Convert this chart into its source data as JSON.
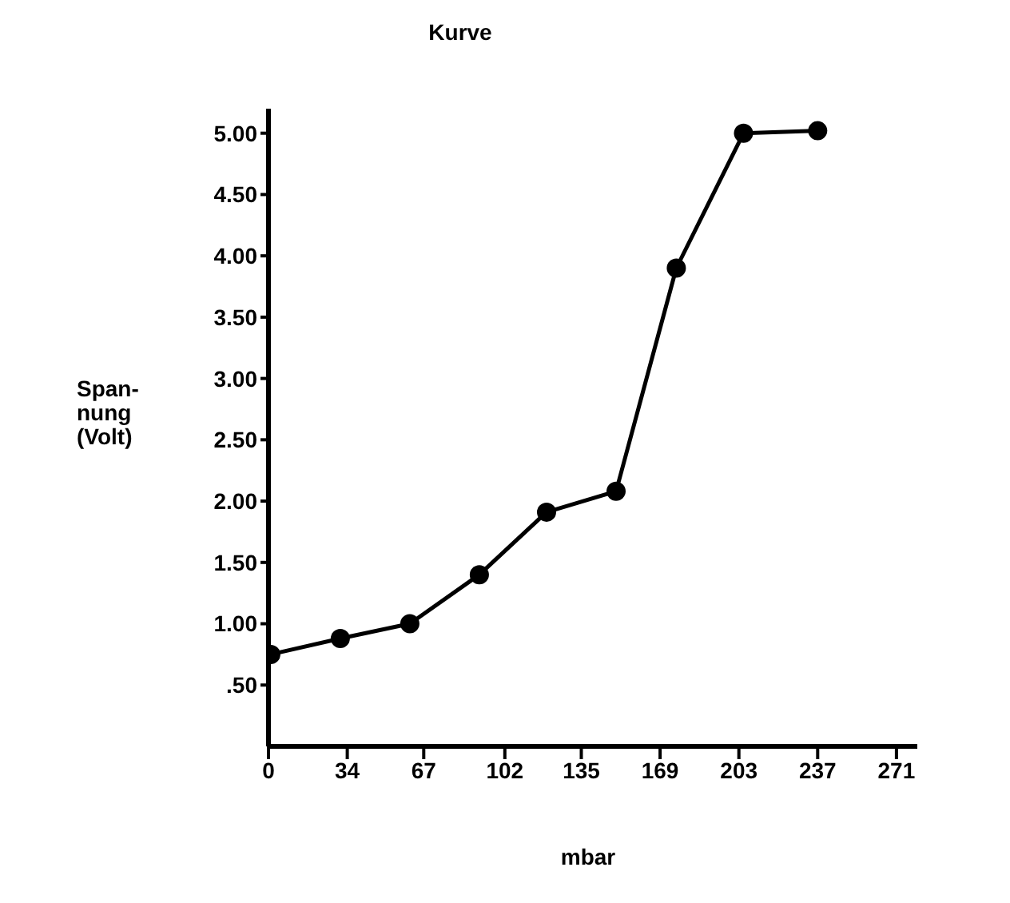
{
  "chart_data": {
    "type": "line",
    "title": "Kurve",
    "xlabel": "mbar",
    "ylabel": "Span-\nnung\n(Volt)",
    "x": [
      1,
      31,
      61,
      91,
      120,
      150,
      176,
      205,
      237
    ],
    "series": [
      {
        "color": "#000000",
        "values": [
          0.75,
          0.88,
          1.0,
          1.4,
          1.91,
          2.08,
          3.9,
          5.0,
          5.02
        ]
      }
    ],
    "xlim": [
      0,
      280
    ],
    "xticks": [
      0,
      34,
      67,
      102,
      135,
      169,
      203,
      237,
      271
    ],
    "ylim": [
      0,
      5.2
    ],
    "yticks": [
      {
        "value": 0.5,
        "label": ".50"
      },
      {
        "value": 1,
        "label": "1.00"
      },
      {
        "value": 1.5,
        "label": "1.50"
      },
      {
        "value": 2,
        "label": "2.00"
      },
      {
        "value": 2.5,
        "label": "2.50"
      },
      {
        "value": 3,
        "label": "3.00"
      },
      {
        "value": 3.5,
        "label": "3.50"
      },
      {
        "value": 4,
        "label": "4.00"
      },
      {
        "value": 4.5,
        "label": "4.50"
      },
      {
        "value": 5,
        "label": "5.00"
      }
    ],
    "grid": false,
    "legend": false,
    "marker": "circle",
    "line_style": "solid"
  }
}
